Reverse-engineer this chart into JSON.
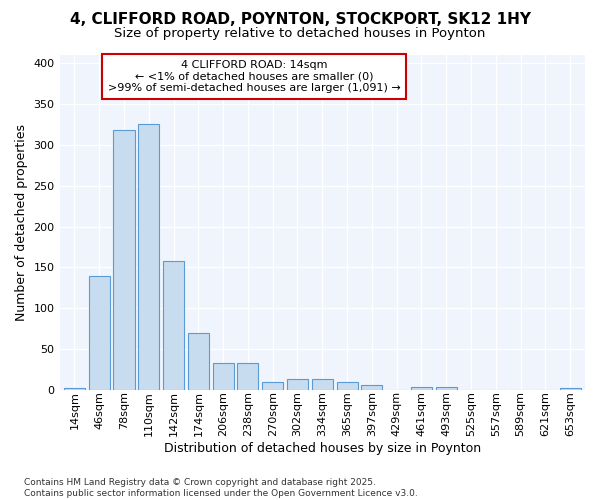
{
  "title_line1": "4, CLIFFORD ROAD, POYNTON, STOCKPORT, SK12 1HY",
  "title_line2": "Size of property relative to detached houses in Poynton",
  "xlabel": "Distribution of detached houses by size in Poynton",
  "ylabel": "Number of detached properties",
  "categories": [
    "14sqm",
    "46sqm",
    "78sqm",
    "110sqm",
    "142sqm",
    "174sqm",
    "206sqm",
    "238sqm",
    "270sqm",
    "302sqm",
    "334sqm",
    "365sqm",
    "397sqm",
    "429sqm",
    "461sqm",
    "493sqm",
    "525sqm",
    "557sqm",
    "589sqm",
    "621sqm",
    "653sqm"
  ],
  "values": [
    2,
    140,
    318,
    325,
    158,
    70,
    33,
    33,
    10,
    13,
    13,
    10,
    6,
    0,
    4,
    4,
    0,
    0,
    0,
    0,
    2
  ],
  "bar_color": "#c8dcf0",
  "bar_edge_color": "#5b9bd5",
  "annotation_text": "4 CLIFFORD ROAD: 14sqm\n← <1% of detached houses are smaller (0)\n>99% of semi-detached houses are larger (1,091) →",
  "annotation_box_facecolor": "#ffffff",
  "annotation_border_color": "#cc0000",
  "footer_line1": "Contains HM Land Registry data © Crown copyright and database right 2025.",
  "footer_line2": "Contains public sector information licensed under the Open Government Licence v3.0.",
  "bg_color": "#ffffff",
  "plot_bg_color": "#f0f4fc",
  "yticks": [
    0,
    50,
    100,
    150,
    200,
    250,
    300,
    350,
    400
  ],
  "ylim": [
    0,
    410
  ],
  "grid_color": "#ffffff",
  "title_fontsize": 11,
  "subtitle_fontsize": 9.5,
  "axis_label_fontsize": 9,
  "tick_fontsize": 8,
  "annotation_fontsize": 8,
  "footer_fontsize": 6.5
}
